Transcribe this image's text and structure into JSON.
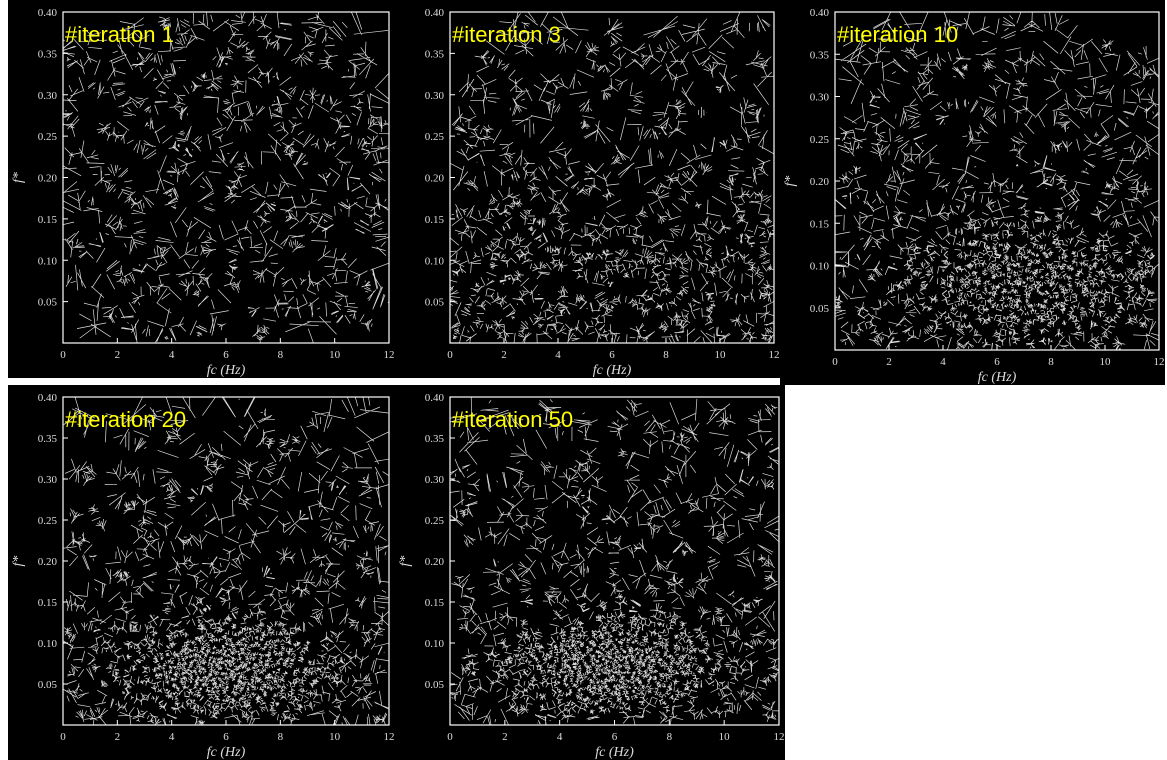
{
  "chart_data": [
    {
      "type": "voronoi",
      "title": "#iteration 1",
      "xlabel": "fc (Hz)",
      "ylabel": "f*",
      "xlim": [
        0,
        12
      ],
      "xticks": [
        0,
        2,
        4,
        6,
        8,
        10,
        12
      ],
      "ylim": [
        0,
        0.4
      ],
      "yticks": [
        0.05,
        {
          "value": 0.1,
          "label": "0.10"
        },
        0.15,
        {
          "value": 0.2,
          "label": "0.20"
        },
        0.25,
        {
          "value": 0.3,
          "label": "0.30"
        },
        0.35,
        {
          "value": 0.4,
          "label": "0.40"
        }
      ]
    },
    {
      "type": "voronoi",
      "title": "#iteration 3",
      "xlabel": "fc (Hz)",
      "xlim": [
        0,
        12
      ],
      "xticks": [
        0,
        2,
        4,
        6,
        8,
        10,
        12
      ],
      "ylim": [
        0,
        0.4
      ],
      "yticks": [
        0.05,
        {
          "value": 0.1,
          "label": "0.10"
        },
        0.15,
        {
          "value": 0.2,
          "label": "0.20"
        },
        0.25,
        {
          "value": 0.3,
          "label": "0.30"
        },
        0.35,
        {
          "value": 0.4,
          "label": "0.40"
        }
      ]
    },
    {
      "type": "voronoi",
      "title": "#iteration 10",
      "xlabel": "fc (Hz)",
      "ylabel": "f*",
      "xlim": [
        0,
        12
      ],
      "xticks": [
        0,
        2,
        4,
        6,
        8,
        10,
        12
      ],
      "ylim": [
        0,
        0.4
      ],
      "yticks": [
        0.05,
        {
          "value": 0.1,
          "label": "0.10"
        },
        0.15,
        {
          "value": 0.2,
          "label": "0.20"
        },
        0.25,
        {
          "value": 0.3,
          "label": "0.30"
        },
        0.35,
        {
          "value": 0.4,
          "label": "0.40"
        }
      ]
    },
    {
      "type": "voronoi",
      "title": "#iteration 20",
      "xlabel": "fc (Hz)",
      "ylabel": "f*",
      "xlim": [
        0,
        12
      ],
      "xticks": [
        0,
        2,
        4,
        6,
        8,
        10,
        12
      ],
      "ylim": [
        0,
        0.4
      ],
      "yticks": [
        0.05,
        {
          "value": 0.1,
          "label": "0.10"
        },
        0.15,
        {
          "value": 0.2,
          "label": "0.20"
        },
        0.25,
        {
          "value": 0.3,
          "label": "0.30"
        },
        0.35,
        {
          "value": 0.4,
          "label": "0.40"
        }
      ]
    },
    {
      "type": "voronoi",
      "title": "#iteration 50",
      "xlabel": "fc (Hz)",
      "ylabel": "f*",
      "xlim": [
        0,
        12
      ],
      "xticks": [
        0,
        2,
        4,
        6,
        8,
        10,
        12
      ],
      "ylim": [
        0,
        0.4
      ],
      "yticks": [
        0.05,
        {
          "value": 0.1,
          "label": "0.10"
        },
        0.15,
        {
          "value": 0.2,
          "label": "0.20"
        },
        0.25,
        {
          "value": 0.3,
          "label": "0.30"
        },
        0.35,
        {
          "value": 0.4,
          "label": "0.40"
        }
      ]
    }
  ]
}
